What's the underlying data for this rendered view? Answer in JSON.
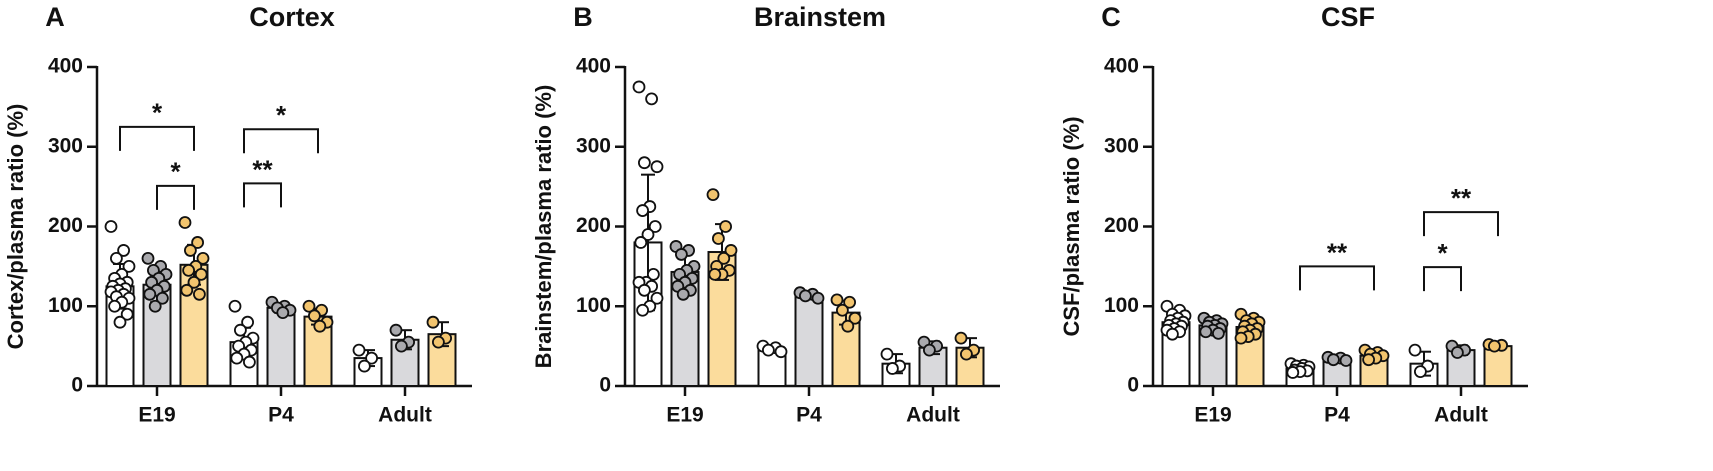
{
  "chart_data": [
    {
      "type": "bar",
      "panel": "A",
      "title": "Cortex",
      "ylabel": "Cortex/plasma ratio (%)",
      "categories": [
        "E19",
        "P4",
        "Adult"
      ],
      "ylim": [
        0,
        400
      ],
      "yticks": [
        0,
        100,
        200,
        300,
        400
      ],
      "series": [
        {
          "color": "#ffffff",
          "point_color": "#ffffff",
          "values": [
            125,
            55,
            35
          ],
          "errors": [
            28,
            18,
            10
          ],
          "points": [
            [
              200,
              170,
              160,
              150,
              140,
              135,
              130,
              128,
              125,
              122,
              120,
              118,
              115,
              112,
              110,
              105,
              100,
              90,
              80
            ],
            [
              100,
              80,
              70,
              60,
              55,
              50,
              45,
              40,
              35,
              30
            ],
            [
              45,
              35,
              25
            ]
          ]
        },
        {
          "color": "#d9d9dc",
          "point_color": "#a9a9ad",
          "values": [
            127,
            98,
            58
          ],
          "errors": [
            22,
            6,
            12
          ],
          "points": [
            [
              160,
              150,
              145,
              140,
              135,
              130,
              125,
              120,
              115,
              110,
              100
            ],
            [
              105,
              100,
              98,
              95,
              92
            ],
            [
              70,
              55,
              50
            ]
          ]
        },
        {
          "color": "#fbdc9c",
          "point_color": "#f2c46e",
          "values": [
            152,
            87,
            65
          ],
          "errors": [
            25,
            10,
            15
          ],
          "points": [
            [
              205,
              180,
              170,
              160,
              150,
              145,
              140,
              130,
              120,
              115
            ],
            [
              100,
              95,
              88,
              80,
              75
            ],
            [
              80,
              60,
              55
            ]
          ]
        }
      ],
      "annotations": [
        {
          "category": 0,
          "from": 0,
          "to": 2,
          "y": 325,
          "label": "*"
        },
        {
          "category": 0,
          "from": 1,
          "to": 2,
          "y": 251,
          "label": "*"
        },
        {
          "category": 1,
          "from": 0,
          "to": 2,
          "y": 322,
          "label": "*"
        },
        {
          "category": 1,
          "from": 0,
          "to": 1,
          "y": 254,
          "label": "**"
        }
      ]
    },
    {
      "type": "bar",
      "panel": "B",
      "title": "Brainstem",
      "ylabel": "Brainstem/plasma ratio (%)",
      "categories": [
        "E19",
        "P4",
        "Adult"
      ],
      "ylim": [
        0,
        400
      ],
      "yticks": [
        0,
        100,
        200,
        300,
        400
      ],
      "series": [
        {
          "color": "#ffffff",
          "point_color": "#ffffff",
          "values": [
            180,
            46,
            28
          ],
          "errors": [
            85,
            4,
            12
          ],
          "points": [
            [
              375,
              360,
              280,
              275,
              225,
              220,
              200,
              190,
              180,
              140,
              130,
              130,
              125,
              120,
              110,
              100,
              95
            ],
            [
              50,
              48,
              45,
              43
            ],
            [
              40,
              25,
              22
            ]
          ]
        },
        {
          "color": "#d9d9dc",
          "point_color": "#a9a9ad",
          "values": [
            143,
            113,
            48
          ],
          "errors": [
            25,
            4,
            8
          ],
          "points": [
            [
              175,
              170,
              165,
              150,
              145,
              140,
              135,
              130,
              125,
              120,
              115
            ],
            [
              117,
              115,
              113,
              110
            ],
            [
              55,
              50,
              45
            ]
          ]
        },
        {
          "color": "#fbdc9c",
          "point_color": "#f2c46e",
          "values": [
            168,
            92,
            48
          ],
          "errors": [
            35,
            15,
            12
          ],
          "points": [
            [
              240,
              200,
              185,
              170,
              160,
              150,
              145,
              140,
              140
            ],
            [
              108,
              105,
              95,
              85,
              75
            ],
            [
              60,
              45,
              40
            ]
          ]
        }
      ],
      "annotations": []
    },
    {
      "type": "bar",
      "panel": "C",
      "title": "CSF",
      "ylabel": "CSF/plasma ratio (%)",
      "categories": [
        "E19",
        "P4",
        "Adult"
      ],
      "ylim": [
        0,
        400
      ],
      "yticks": [
        0,
        100,
        200,
        300,
        400
      ],
      "series": [
        {
          "color": "#ffffff",
          "point_color": "#ffffff",
          "values": [
            80,
            22,
            28
          ],
          "errors": [
            12,
            4,
            15
          ],
          "points": [
            [
              100,
              95,
              90,
              88,
              85,
              82,
              80,
              78,
              76,
              75,
              72,
              70,
              68,
              65
            ],
            [
              28,
              26,
              25,
              24,
              22,
              20,
              19,
              18,
              17
            ],
            [
              45,
              25,
              18
            ]
          ]
        },
        {
          "color": "#d9d9dc",
          "point_color": "#a9a9ad",
          "values": [
            76,
            33,
            45
          ],
          "errors": [
            8,
            3,
            6
          ],
          "points": [
            [
              85,
              82,
              80,
              78,
              76,
              75,
              72,
              70,
              68,
              66
            ],
            [
              36,
              35,
              33,
              32
            ],
            [
              50,
              45,
              42
            ]
          ]
        },
        {
          "color": "#fbdc9c",
          "point_color": "#f2c46e",
          "values": [
            74,
            38,
            50
          ],
          "errors": [
            12,
            6,
            3
          ],
          "points": [
            [
              90,
              85,
              82,
              80,
              78,
              75,
              72,
              70,
              68,
              65,
              62,
              60
            ],
            [
              45,
              42,
              40,
              38,
              35,
              33
            ],
            [
              52,
              51,
              50
            ]
          ]
        }
      ],
      "annotations": [
        {
          "category": 1,
          "from": 0,
          "to": 2,
          "y": 150,
          "label": "**"
        },
        {
          "category": 2,
          "from": 0,
          "to": 1,
          "y": 149,
          "label": "*"
        },
        {
          "category": 2,
          "from": 0,
          "to": 2,
          "y": 218,
          "label": "**"
        }
      ]
    }
  ]
}
